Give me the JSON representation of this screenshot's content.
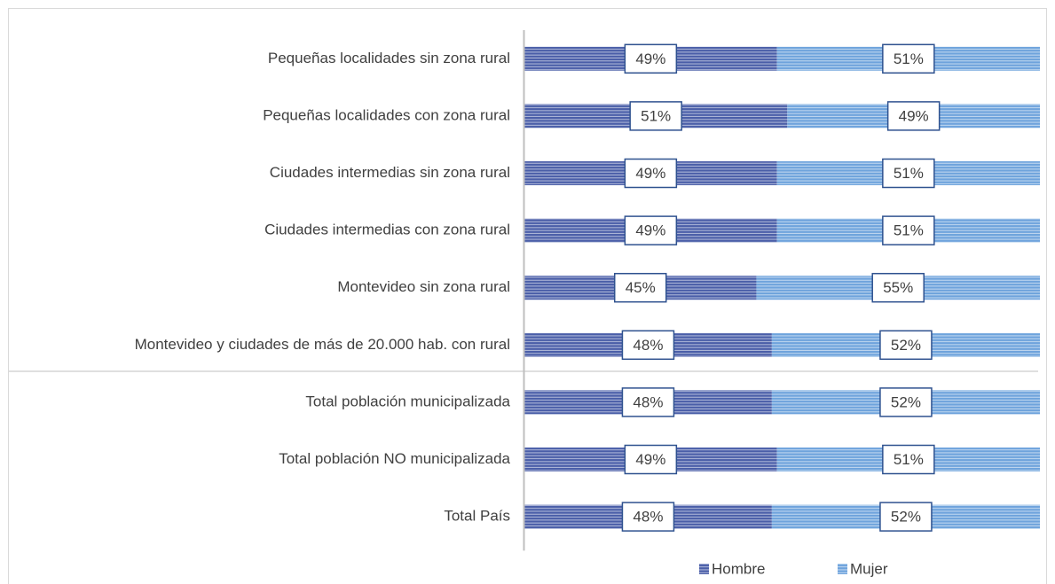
{
  "chart_data": {
    "type": "bar",
    "orientation": "horizontal",
    "stacked": true,
    "categories": [
      "Pequeñas localidades sin zona rural",
      "Pequeñas localidades con zona rural",
      "Ciudades intermedias sin zona rural",
      "Ciudades intermedias con zona rural",
      "Montevideo sin zona rural",
      "Montevideo y ciudades de más de 20.000 hab. con rural",
      "Total población municipalizada",
      "Total población NO municipalizada",
      "Total País"
    ],
    "series": [
      {
        "name": "Hombre",
        "color": "#4a5ea8",
        "values": [
          49,
          51,
          49,
          49,
          45,
          48,
          48,
          49,
          48
        ],
        "value_labels": [
          "49%",
          "51%",
          "49%",
          "49%",
          "45%",
          "48%",
          "48%",
          "49%",
          "48%"
        ]
      },
      {
        "name": "Mujer",
        "color": "#6ea3dc",
        "values": [
          51,
          49,
          51,
          51,
          55,
          52,
          52,
          51,
          52
        ],
        "value_labels": [
          "51%",
          "49%",
          "51%",
          "51%",
          "55%",
          "52%",
          "52%",
          "51%",
          "52%"
        ]
      }
    ],
    "xlim": [
      0,
      100
    ],
    "legend": "bottom"
  }
}
